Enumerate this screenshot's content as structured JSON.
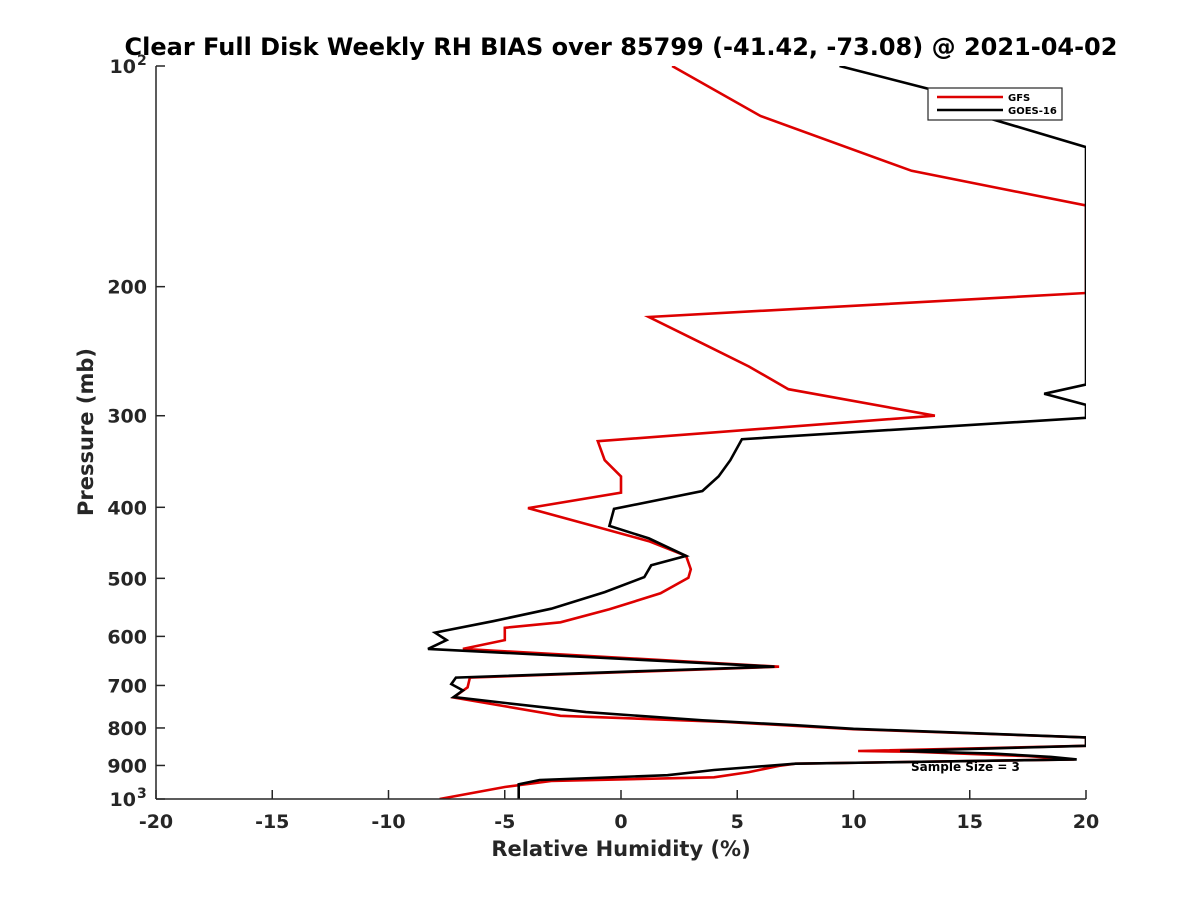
{
  "chart_data": {
    "type": "line",
    "title": "Clear Full Disk Weekly RH BIAS over 85799 (-41.42, -73.08) @ 2021-04-02",
    "xlabel": "Relative Humidity (%)",
    "ylabel": "Pressure (mb)",
    "xlim": [
      -20,
      20
    ],
    "ylim": [
      100,
      1000
    ],
    "y_scale": "log",
    "y_reversed": true,
    "x_ticks": [
      {
        "value": -20,
        "label": "-20"
      },
      {
        "value": -15,
        "label": "-15"
      },
      {
        "value": -10,
        "label": "-10"
      },
      {
        "value": -5,
        "label": "-5"
      },
      {
        "value": 0,
        "label": "0"
      },
      {
        "value": 5,
        "label": "5"
      },
      {
        "value": 10,
        "label": "10"
      },
      {
        "value": 15,
        "label": "15"
      },
      {
        "value": 20,
        "label": "20"
      }
    ],
    "y_ticks": [
      {
        "value": 100,
        "label": "10",
        "sup": "2"
      },
      {
        "value": 200,
        "label": "200"
      },
      {
        "value": 300,
        "label": "300"
      },
      {
        "value": 400,
        "label": "400"
      },
      {
        "value": 500,
        "label": "500"
      },
      {
        "value": 600,
        "label": "600"
      },
      {
        "value": 700,
        "label": "700"
      },
      {
        "value": 800,
        "label": "800"
      },
      {
        "value": 900,
        "label": "900"
      },
      {
        "value": 1000,
        "label": "10",
        "sup": "3"
      }
    ],
    "grid": false,
    "legend_position": "top-right",
    "annotation": "Sample Size = 3",
    "series": [
      {
        "name": "GFS",
        "color": "#dd0000",
        "points": [
          [
            2.2,
            100
          ],
          [
            6.0,
            117
          ],
          [
            12.5,
            139
          ],
          [
            20.0,
            155
          ],
          [
            20.0,
            204
          ],
          [
            1.2,
            220
          ],
          [
            3.5,
            239
          ],
          [
            5.5,
            257
          ],
          [
            7.2,
            276
          ],
          [
            13.5,
            300
          ],
          [
            -1.0,
            325
          ],
          [
            -0.7,
            345
          ],
          [
            0.0,
            363
          ],
          [
            0.0,
            382
          ],
          [
            -4.0,
            401
          ],
          [
            -1.2,
            424
          ],
          [
            1.2,
            445
          ],
          [
            2.8,
            466
          ],
          [
            3.0,
            486
          ],
          [
            2.9,
            499
          ],
          [
            1.7,
            524
          ],
          [
            -0.5,
            551
          ],
          [
            -2.6,
            574
          ],
          [
            -5.0,
            584
          ],
          [
            -5.0,
            607
          ],
          [
            -6.8,
            624
          ],
          [
            6.8,
            660
          ],
          [
            -6.5,
            683
          ],
          [
            -6.6,
            704
          ],
          [
            -7.2,
            727
          ],
          [
            -2.6,
            770
          ],
          [
            4.5,
            785
          ],
          [
            10.0,
            803
          ],
          [
            20.0,
            824
          ],
          [
            20.0,
            846
          ],
          [
            10.2,
            860
          ],
          [
            12.5,
            862
          ],
          [
            17.5,
            874
          ],
          [
            19.5,
            883
          ],
          [
            7.5,
            895
          ],
          [
            6.8,
            901
          ],
          [
            5.5,
            919
          ],
          [
            4.0,
            934
          ],
          [
            -3.0,
            945
          ],
          [
            -5.0,
            963
          ],
          [
            -7.8,
            1000
          ]
        ]
      },
      {
        "name": "GOES-16",
        "color": "#000000",
        "points": [
          [
            9.4,
            100
          ],
          [
            13.5,
            108
          ],
          [
            15.5,
            117
          ],
          [
            20.0,
            129
          ],
          [
            20.0,
            272
          ],
          [
            18.2,
            280
          ],
          [
            20.0,
            290
          ],
          [
            20.0,
            302
          ],
          [
            5.2,
            323
          ],
          [
            4.7,
            345
          ],
          [
            4.2,
            363
          ],
          [
            3.5,
            380
          ],
          [
            -0.3,
            402
          ],
          [
            -0.5,
            424
          ],
          [
            1.2,
            441
          ],
          [
            2.8,
            466
          ],
          [
            1.3,
            480
          ],
          [
            1.0,
            498
          ],
          [
            -0.7,
            522
          ],
          [
            -3.0,
            550
          ],
          [
            -5.5,
            572
          ],
          [
            -8.0,
            593
          ],
          [
            -7.5,
            607
          ],
          [
            -8.3,
            624
          ],
          [
            6.6,
            660
          ],
          [
            1.0,
            669
          ],
          [
            -7.1,
            683
          ],
          [
            -7.3,
            697
          ],
          [
            -6.8,
            711
          ],
          [
            -7.2,
            726
          ],
          [
            -1.5,
            761
          ],
          [
            3.5,
            781
          ],
          [
            7.5,
            793
          ],
          [
            10.0,
            802
          ],
          [
            20.0,
            824
          ],
          [
            20.0,
            846
          ],
          [
            12.0,
            860
          ],
          [
            16.0,
            867
          ],
          [
            18.5,
            876
          ],
          [
            19.6,
            883
          ],
          [
            7.5,
            895
          ],
          [
            4.0,
            913
          ],
          [
            2.0,
            928
          ],
          [
            -3.5,
            942
          ],
          [
            -4.4,
            955
          ],
          [
            -4.4,
            1000
          ]
        ]
      }
    ]
  }
}
